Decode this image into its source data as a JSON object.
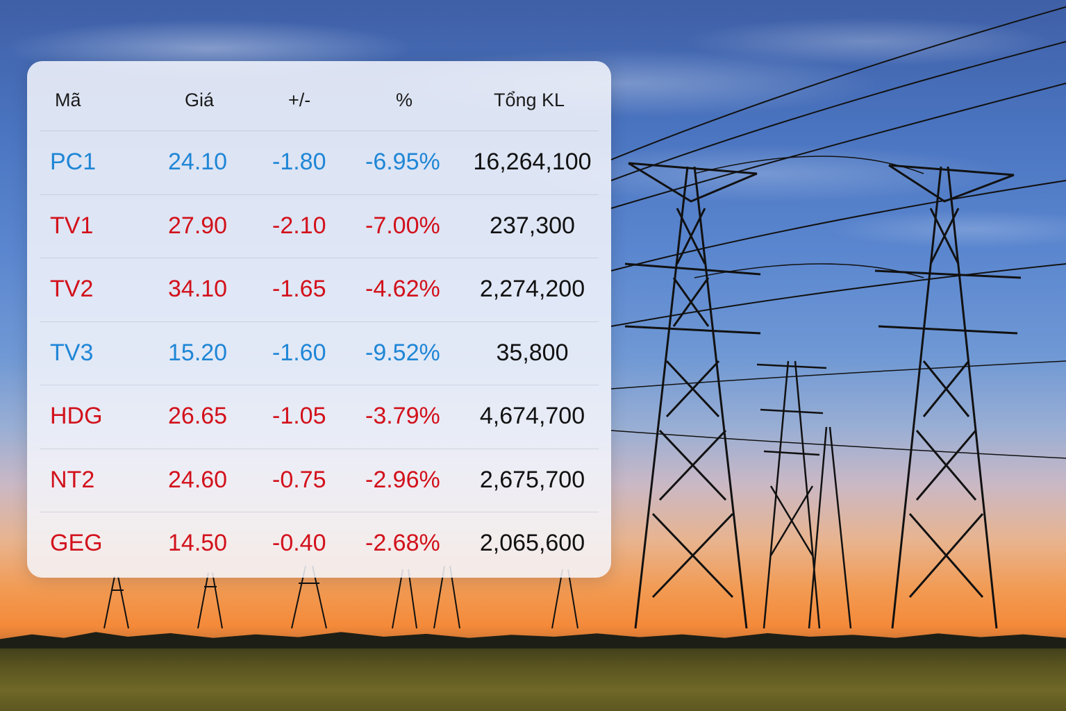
{
  "colors": {
    "blue_row": "#1f86d6",
    "red_row": "#d2111b",
    "volume_text": "#111111"
  },
  "table": {
    "headers": {
      "code": "Mã",
      "price": "Giá",
      "change": "+/-",
      "percent": "%",
      "volume": "Tổng KL"
    },
    "rows": [
      {
        "code": "PC1",
        "price": "24.10",
        "change": "-1.80",
        "percent": "-6.95%",
        "volume": "16,264,100",
        "color": "blue"
      },
      {
        "code": "TV1",
        "price": "27.90",
        "change": "-2.10",
        "percent": "-7.00%",
        "volume": "237,300",
        "color": "red"
      },
      {
        "code": "TV2",
        "price": "34.10",
        "change": "-1.65",
        "percent": "-4.62%",
        "volume": "2,274,200",
        "color": "red"
      },
      {
        "code": "TV3",
        "price": "15.20",
        "change": "-1.60",
        "percent": "-9.52%",
        "volume": "35,800",
        "color": "blue"
      },
      {
        "code": "HDG",
        "price": "26.65",
        "change": "-1.05",
        "percent": "-3.79%",
        "volume": "4,674,700",
        "color": "red"
      },
      {
        "code": "NT2",
        "price": "24.60",
        "change": "-0.75",
        "percent": "-2.96%",
        "volume": "2,675,700",
        "color": "red"
      },
      {
        "code": "GEG",
        "price": "14.50",
        "change": "-0.40",
        "percent": "-2.68%",
        "volume": "2,065,600",
        "color": "red"
      }
    ]
  }
}
